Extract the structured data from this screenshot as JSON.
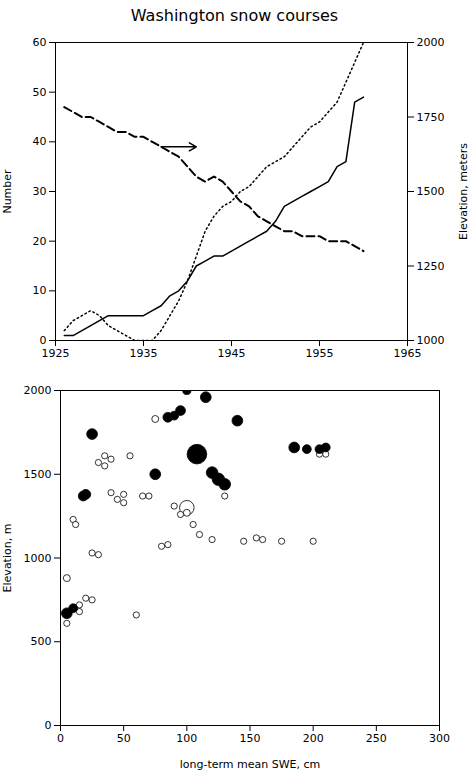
{
  "chart_data": [
    {
      "type": "line",
      "title": "Washington snow courses",
      "ylabel": "Number",
      "y2label": "Elevation, meters",
      "xlim": [
        1925,
        1965
      ],
      "xticks": [
        1925,
        1935,
        1945,
        1955,
        1965
      ],
      "ylim": [
        0,
        60
      ],
      "yticks": [
        0,
        10,
        20,
        30,
        40,
        50,
        60
      ],
      "y2lim": [
        1000,
        2000
      ],
      "y2ticks": [
        1000,
        1250,
        1500,
        1750,
        2000
      ],
      "grid": false,
      "x": [
        1926,
        1927,
        1928,
        1929,
        1930,
        1931,
        1932,
        1933,
        1934,
        1935,
        1936,
        1937,
        1938,
        1939,
        1940,
        1941,
        1942,
        1943,
        1944,
        1945,
        1946,
        1947,
        1948,
        1949,
        1950,
        1951,
        1952,
        1953,
        1954,
        1955,
        1956,
        1957,
        1958,
        1959,
        1960
      ],
      "series": [
        {
          "color": "black",
          "line_style": "solid",
          "values": [
            1,
            1,
            2,
            3,
            4,
            5,
            5,
            5,
            5,
            5,
            6,
            7,
            9,
            10,
            12,
            15,
            16,
            17,
            17,
            18,
            19,
            20,
            21,
            22,
            24,
            27,
            28,
            29,
            30,
            31,
            32,
            35,
            36,
            48,
            49
          ]
        },
        {
          "color": "black",
          "line_style": "dotted",
          "values": [
            2,
            4,
            5,
            6,
            5,
            3,
            2,
            1,
            0,
            0,
            0,
            2,
            5,
            8,
            12,
            17,
            22,
            25,
            27,
            28,
            30,
            31,
            33,
            35,
            36,
            37,
            39,
            41,
            43,
            44,
            46,
            48,
            52,
            56,
            60
          ]
        },
        {
          "color": "black",
          "line_style": "dashed",
          "values": [
            47,
            46,
            45,
            45,
            44,
            43,
            42,
            42,
            41,
            41,
            40,
            39,
            38,
            37,
            35,
            33,
            32,
            33,
            32,
            30,
            28,
            27,
            25,
            24,
            23,
            22,
            22,
            21,
            21,
            21,
            20,
            20,
            20,
            19,
            18
          ]
        }
      ],
      "annotations": [
        {
          "type": "arrow",
          "x_start": 1937,
          "x_end": 1941,
          "y": 39,
          "color": "black"
        }
      ]
    },
    {
      "type": "scatter",
      "xlabel": "long-term mean SWE, cm",
      "ylabel": "Elevation, m",
      "xlim": [
        0,
        300
      ],
      "xticks": [
        0,
        50,
        100,
        150,
        200,
        250,
        300
      ],
      "ylim": [
        0,
        2000
      ],
      "yticks": [
        0,
        500,
        1000,
        1500,
        2000
      ],
      "grid": false,
      "series": [
        {
          "marker": "hollow",
          "color": "black",
          "x": [
            5,
            5,
            10,
            12,
            15,
            15,
            20,
            25,
            25,
            30,
            30,
            35,
            35,
            40,
            40,
            45,
            50,
            50,
            55,
            60,
            65,
            70,
            75,
            80,
            85,
            90,
            95,
            100,
            105,
            110,
            120,
            130,
            145,
            155,
            160,
            175,
            200,
            100,
            205,
            210
          ],
          "y": [
            880,
            610,
            1230,
            1200,
            680,
            720,
            760,
            750,
            1030,
            1020,
            1570,
            1550,
            1610,
            1590,
            1390,
            1350,
            1380,
            1330,
            1610,
            660,
            1370,
            1370,
            1830,
            1070,
            1080,
            1310,
            1260,
            1270,
            1200,
            1140,
            1110,
            1370,
            1100,
            1120,
            1110,
            1100,
            1100,
            1300,
            1620,
            1620
          ],
          "sizes": [
            25,
            20,
            20,
            20,
            20,
            20,
            20,
            20,
            20,
            20,
            20,
            20,
            20,
            20,
            20,
            20,
            20,
            20,
            20,
            20,
            20,
            20,
            25,
            20,
            20,
            20,
            20,
            25,
            20,
            20,
            20,
            20,
            20,
            20,
            20,
            20,
            20,
            110,
            20,
            20
          ]
        },
        {
          "marker": "filled",
          "color": "black",
          "x": [
            5,
            10,
            18,
            20,
            25,
            75,
            85,
            90,
            95,
            100,
            108,
            115,
            120,
            125,
            130,
            140,
            185,
            195,
            205,
            210
          ],
          "y": [
            670,
            700,
            1370,
            1380,
            1740,
            1500,
            1840,
            1850,
            1880,
            2000,
            1620,
            1960,
            1510,
            1470,
            1440,
            1820,
            1660,
            1650,
            1650,
            1660
          ],
          "sizes": [
            60,
            40,
            50,
            50,
            60,
            60,
            50,
            40,
            50,
            35,
            200,
            60,
            70,
            80,
            70,
            60,
            60,
            40,
            40,
            40
          ]
        }
      ]
    }
  ]
}
